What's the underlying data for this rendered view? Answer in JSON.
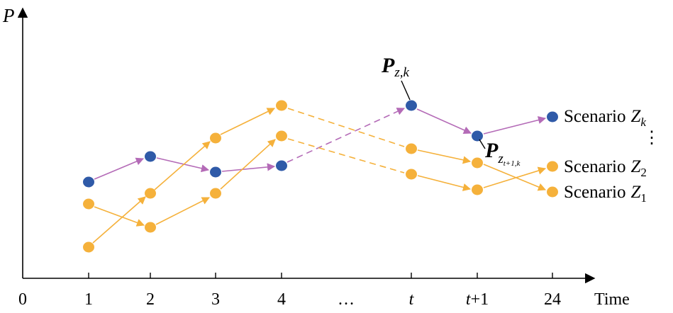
{
  "axes": {
    "y_label": "P",
    "x_label": "Time",
    "origin_label": "0",
    "ticks": [
      "1",
      "2",
      "3",
      "4",
      "…",
      "t",
      "t+1",
      "24"
    ]
  },
  "scenarios": [
    {
      "label_word": "Scenario",
      "label_var": "Z",
      "label_sub": "k"
    },
    {
      "label_word": "Scenario",
      "label_var": "Z",
      "label_sub": "2"
    },
    {
      "label_word": "Scenario",
      "label_var": "Z",
      "label_sub": "1"
    }
  ],
  "vertical_ellipsis": "⋮",
  "annotations": {
    "p_zk": {
      "main": "P",
      "sub": "z,k"
    },
    "p_zt1k": {
      "main": "P",
      "sub_var": "z",
      "sub_sub": "t+1,k"
    }
  },
  "colors": {
    "axis": "#000000",
    "blue_node": "#2f5aa8",
    "blue_edge": "#b46bb7",
    "orange_node": "#f5b13b",
    "orange_edge": "#f5b13b"
  }
}
